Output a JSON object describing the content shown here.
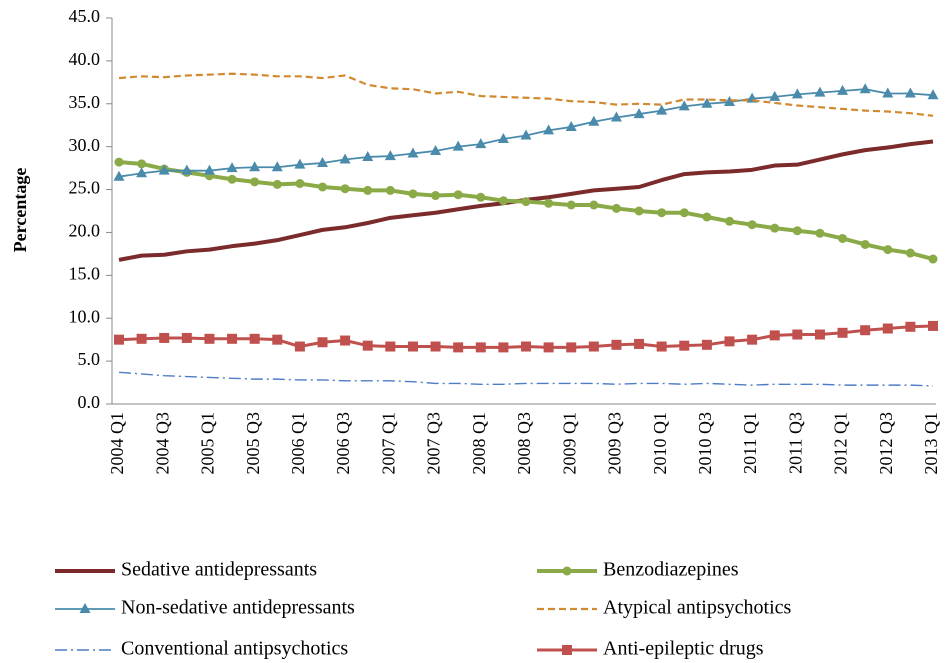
{
  "chart_data": {
    "type": "line",
    "ylabel": "Percentage",
    "categories": [
      "2004 Q1",
      null,
      "2004 Q3",
      null,
      "2005 Q1",
      null,
      "2005 Q3",
      null,
      "2006 Q1",
      null,
      "2006 Q3",
      null,
      "2007 Q1",
      null,
      "2007 Q3",
      null,
      "2008 Q1",
      null,
      "2008 Q3",
      null,
      "2009 Q1",
      null,
      "2009 Q3",
      null,
      "2010 Q1",
      null,
      "2010 Q3",
      null,
      "2011 Q1",
      null,
      "2011 Q3",
      null,
      "2012 Q1",
      null,
      "2012 Q3",
      null,
      "2013 Q1"
    ],
    "ylim": [
      0,
      45
    ],
    "yticks": [
      {
        "value": 0,
        "label": "0.0"
      },
      {
        "value": 5,
        "label": "5.0"
      },
      {
        "value": 10,
        "label": "10.0"
      },
      {
        "value": 15,
        "label": "15.0"
      },
      {
        "value": 20,
        "label": "20.0"
      },
      {
        "value": 25,
        "label": "25.0"
      },
      {
        "value": 30,
        "label": "30.0"
      },
      {
        "value": 35,
        "label": "35.0"
      },
      {
        "value": 40,
        "label": "40.0"
      },
      {
        "value": 45,
        "label": "45.0"
      }
    ],
    "series": [
      {
        "name": "Sedative antidepressants",
        "color": "#7b2b2b",
        "width": 4,
        "dash": "none",
        "marker": "none",
        "values": [
          16.8,
          17.3,
          17.4,
          17.8,
          18.0,
          18.4,
          18.7,
          19.1,
          19.7,
          20.3,
          20.6,
          21.1,
          21.7,
          22.0,
          22.3,
          22.7,
          23.1,
          23.4,
          23.8,
          24.1,
          24.5,
          24.9,
          25.1,
          25.3,
          26.1,
          26.8,
          27.0,
          27.1,
          27.3,
          27.8,
          27.9,
          28.5,
          29.1,
          29.6,
          29.9,
          30.3,
          30.6
        ]
      },
      {
        "name": "Benzodiazepines",
        "color": "#8aaa48",
        "width": 4,
        "dash": "none",
        "marker": "circle",
        "values": [
          28.2,
          28.0,
          27.4,
          27.0,
          26.6,
          26.2,
          25.9,
          25.6,
          25.7,
          25.3,
          25.1,
          24.9,
          24.9,
          24.5,
          24.3,
          24.4,
          24.1,
          23.7,
          23.6,
          23.4,
          23.2,
          23.2,
          22.8,
          22.5,
          22.3,
          22.3,
          21.8,
          21.3,
          20.9,
          20.5,
          20.2,
          19.9,
          19.3,
          18.6,
          18.0,
          17.6,
          16.9
        ]
      },
      {
        "name": "Non-sedative  antidepressants",
        "color": "#4a8bab",
        "width": 1.8,
        "dash": "none",
        "marker": "triangle",
        "values": [
          26.5,
          26.9,
          27.2,
          27.2,
          27.2,
          27.5,
          27.6,
          27.6,
          27.9,
          28.1,
          28.5,
          28.8,
          28.9,
          29.2,
          29.5,
          30.0,
          30.3,
          30.9,
          31.3,
          31.9,
          32.3,
          32.9,
          33.4,
          33.8,
          34.2,
          34.7,
          35.0,
          35.2,
          35.6,
          35.8,
          36.1,
          36.3,
          36.5,
          36.7,
          36.2,
          36.2,
          36.0
        ]
      },
      {
        "name": "Atypical antipsychotics",
        "color": "#d2892f",
        "width": 2.2,
        "dash": "7 4",
        "marker": "none",
        "values": [
          38.0,
          38.2,
          38.1,
          38.3,
          38.4,
          38.5,
          38.4,
          38.2,
          38.2,
          38.0,
          38.3,
          37.2,
          36.8,
          36.7,
          36.2,
          36.4,
          35.9,
          35.8,
          35.7,
          35.6,
          35.3,
          35.2,
          34.9,
          35.0,
          34.9,
          35.5,
          35.5,
          35.4,
          35.4,
          35.1,
          34.8,
          34.6,
          34.4,
          34.2,
          34.1,
          33.9,
          33.6
        ]
      },
      {
        "name": "Conventional antipsychotics",
        "color": "#4f7cc8",
        "width": 1.4,
        "dash": "12 4 2 4",
        "marker": "none",
        "values": [
          3.7,
          3.5,
          3.3,
          3.2,
          3.1,
          3.0,
          2.9,
          2.9,
          2.8,
          2.8,
          2.7,
          2.7,
          2.7,
          2.6,
          2.4,
          2.4,
          2.3,
          2.3,
          2.4,
          2.4,
          2.4,
          2.4,
          2.3,
          2.4,
          2.4,
          2.3,
          2.4,
          2.3,
          2.2,
          2.3,
          2.3,
          2.3,
          2.2,
          2.2,
          2.2,
          2.2,
          2.1
        ]
      },
      {
        "name": "Anti-epileptic drugs",
        "color": "#c0504d",
        "width": 3,
        "dash": "none",
        "marker": "square",
        "values": [
          7.5,
          7.6,
          7.7,
          7.7,
          7.6,
          7.6,
          7.6,
          7.5,
          6.7,
          7.2,
          7.4,
          6.8,
          6.7,
          6.7,
          6.7,
          6.6,
          6.6,
          6.6,
          6.7,
          6.6,
          6.6,
          6.7,
          6.9,
          7.0,
          6.7,
          6.8,
          6.9,
          7.3,
          7.5,
          8.0,
          8.1,
          8.1,
          8.3,
          8.6,
          8.8,
          9.0,
          9.1
        ]
      }
    ]
  }
}
